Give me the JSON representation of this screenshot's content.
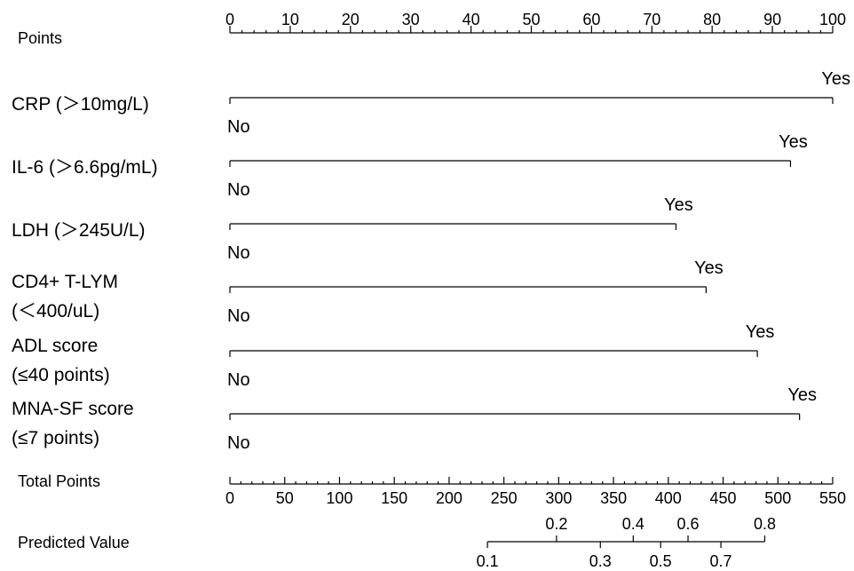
{
  "chart_data": {
    "type": "nomogram",
    "points_axis": {
      "label": "Points",
      "range": [
        0,
        100
      ],
      "major_ticks": [
        0,
        10,
        20,
        30,
        40,
        50,
        60,
        70,
        80,
        90,
        100
      ],
      "minor_step": 2
    },
    "variables": [
      {
        "label_lines": [
          "CRP (＞10mg/L)"
        ],
        "levels": [
          {
            "name": "No",
            "points": 0
          },
          {
            "name": "Yes",
            "points": 100
          }
        ]
      },
      {
        "label_lines": [
          "IL-6 (＞6.6pg/mL)"
        ],
        "levels": [
          {
            "name": "No",
            "points": 0
          },
          {
            "name": "Yes",
            "points": 93
          }
        ]
      },
      {
        "label_lines": [
          "LDH (＞245U/L)"
        ],
        "levels": [
          {
            "name": "No",
            "points": 0
          },
          {
            "name": "Yes",
            "points": 74
          }
        ]
      },
      {
        "label_lines": [
          "CD4+ T-LYM",
          "(＜400/uL)"
        ],
        "levels": [
          {
            "name": "No",
            "points": 0
          },
          {
            "name": "Yes",
            "points": 79
          }
        ]
      },
      {
        "label_lines": [
          "ADL score",
          "(≤40 points)"
        ],
        "levels": [
          {
            "name": "No",
            "points": 0
          },
          {
            "name": "Yes",
            "points": 87.5
          }
        ]
      },
      {
        "label_lines": [
          "MNA-SF score",
          "(≤7 points)"
        ],
        "levels": [
          {
            "name": "No",
            "points": 0
          },
          {
            "name": "Yes",
            "points": 94.5
          }
        ]
      }
    ],
    "total_points_axis": {
      "label": "Total Points",
      "range": [
        0,
        550
      ],
      "major_ticks": [
        0,
        50,
        100,
        150,
        200,
        250,
        300,
        350,
        400,
        450,
        500,
        550
      ],
      "minor_step": 10
    },
    "predicted_value_axis": {
      "label": "Predicted Value",
      "ticks_above": [
        {
          "label": "0.2",
          "total_points": 298
        },
        {
          "label": "0.4",
          "total_points": 368
        },
        {
          "label": "0.6",
          "total_points": 418
        },
        {
          "label": "0.8",
          "total_points": 488
        }
      ],
      "ticks_below": [
        {
          "label": "0.1",
          "total_points": 235
        },
        {
          "label": "0.3",
          "total_points": 338
        },
        {
          "label": "0.5",
          "total_points": 393
        },
        {
          "label": "0.7",
          "total_points": 448
        }
      ],
      "range_total_points": [
        235,
        488
      ]
    }
  }
}
